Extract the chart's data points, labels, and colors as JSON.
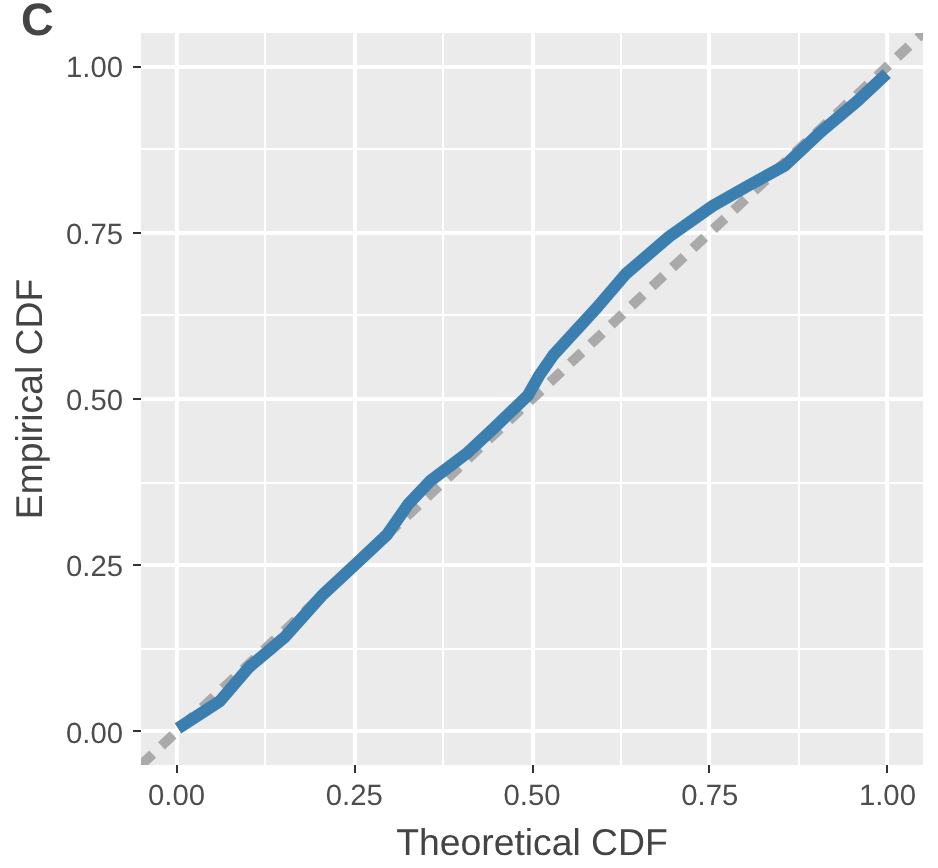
{
  "chart_data": {
    "type": "line",
    "title": "C",
    "xlabel": "Theoretical CDF",
    "ylabel": "Empirical CDF",
    "xlim": [
      -0.05,
      1.05
    ],
    "ylim": [
      -0.05,
      1.05
    ],
    "xticks": [
      {
        "value": 0,
        "label": "0.00"
      },
      {
        "value": 0.25,
        "label": "0.25"
      },
      {
        "value": 0.5,
        "label": "0.50"
      },
      {
        "value": 0.75,
        "label": "0.75"
      },
      {
        "value": 1,
        "label": "1.00"
      }
    ],
    "yticks": [
      {
        "value": 0,
        "label": "0.00"
      },
      {
        "value": 0.25,
        "label": "0.25"
      },
      {
        "value": 0.5,
        "label": "0.50"
      },
      {
        "value": 0.75,
        "label": "0.75"
      },
      {
        "value": 1,
        "label": "1.00"
      }
    ],
    "grid": true,
    "series": [
      {
        "line_style": "dashed",
        "color": "#aaaaaa",
        "x": [
          -0.05,
          1.05
        ],
        "values": [
          -0.05,
          1.05
        ]
      },
      {
        "line_style": "solid",
        "color": "#3a7fb0",
        "x": [
          0.002,
          0.061,
          0.102,
          0.153,
          0.204,
          0.255,
          0.296,
          0.326,
          0.357,
          0.408,
          0.449,
          0.494,
          0.51,
          0.53,
          0.591,
          0.632,
          0.693,
          0.754,
          0.805,
          0.856,
          0.907,
          0.958,
          0.999
        ],
        "values": [
          0.005,
          0.046,
          0.097,
          0.143,
          0.204,
          0.255,
          0.296,
          0.342,
          0.377,
          0.418,
          0.459,
          0.505,
          0.535,
          0.566,
          0.637,
          0.688,
          0.744,
          0.79,
          0.821,
          0.851,
          0.902,
          0.948,
          0.989
        ]
      }
    ]
  }
}
